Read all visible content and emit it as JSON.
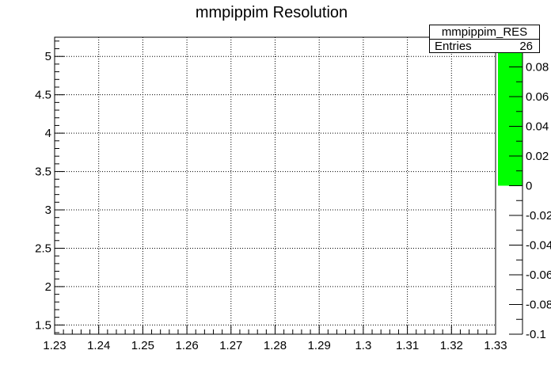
{
  "chart_data": {
    "type": "heatmap",
    "title": "mmpippim Resolution",
    "xlim": [
      1.23,
      1.33
    ],
    "ylim": [
      1.38,
      5.25
    ],
    "x_ticks": [
      "1.23",
      "1.24",
      "1.25",
      "1.26",
      "1.27",
      "1.28",
      "1.29",
      "1.3",
      "1.31",
      "1.32",
      "1.33"
    ],
    "x_tick_values": [
      1.23,
      1.24,
      1.25,
      1.26,
      1.27,
      1.28,
      1.29,
      1.3,
      1.31,
      1.32,
      1.33
    ],
    "y_ticks": [
      "1.5",
      "2",
      "2.5",
      "3",
      "3.5",
      "4",
      "4.5",
      "5"
    ],
    "y_tick_values": [
      1.5,
      2,
      2.5,
      3,
      3.5,
      4,
      4.5,
      5
    ],
    "z_range": [
      -0.1,
      0.1
    ],
    "z_ticks": [
      "0.08",
      "0.06",
      "0.04",
      "0.02",
      "0",
      "-0.02",
      "-0.04",
      "-0.06",
      "-0.08",
      "-0.1"
    ],
    "z_tick_values": [
      0.08,
      0.06,
      0.04,
      0.02,
      0,
      -0.02,
      -0.04,
      -0.06,
      -0.08,
      -0.1
    ],
    "palette_fill": {
      "from": 0,
      "to": 0.1
    },
    "palette_color": "#00ff00",
    "grid": true,
    "stats": {
      "name": "mmpippim_RES",
      "entries_label": "Entries",
      "entries": "26"
    }
  }
}
